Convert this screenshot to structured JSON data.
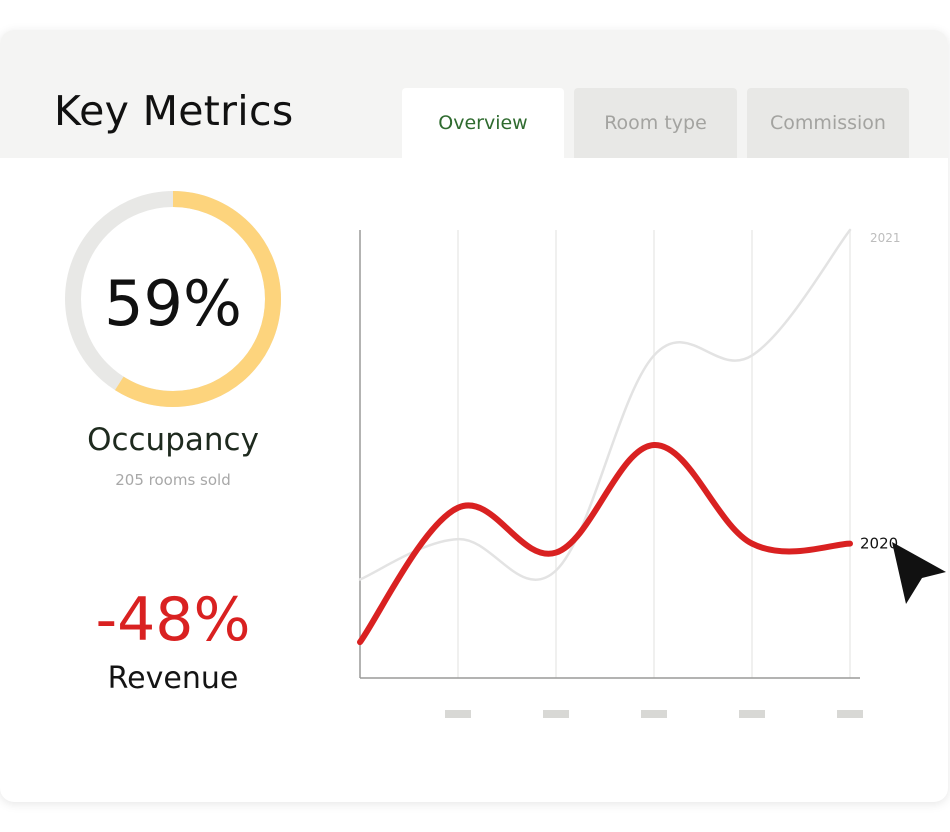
{
  "header": {
    "title": "Key Metrics",
    "tabs": [
      {
        "label": "Overview",
        "active": true
      },
      {
        "label": "Room type",
        "active": false
      },
      {
        "label": "Commission",
        "active": false
      }
    ]
  },
  "occupancy": {
    "value": "59%",
    "fraction": 0.59,
    "label": "Occupancy",
    "sublabel": "205 rooms sold",
    "ring_color": "#fdd47d",
    "track_color": "#e8e8e6"
  },
  "revenue": {
    "value": "-48%",
    "label": "Revenue",
    "color": "#d92121"
  },
  "chart_data": {
    "type": "line",
    "x": [
      0,
      1,
      2,
      3,
      4,
      5
    ],
    "series": [
      {
        "name": "2021",
        "values": [
          22,
          31,
          24,
          72,
          72,
          100
        ],
        "color": "#e3e3e3"
      },
      {
        "name": "2020",
        "values": [
          8,
          38,
          28,
          52,
          30,
          30
        ],
        "color": "#d92121"
      }
    ],
    "xlabel": "",
    "ylabel": "",
    "ylim": [
      0,
      100
    ],
    "grid": true,
    "tick_color": "#d8d8d5"
  },
  "cursor_icon": "arrow-cursor-icon"
}
